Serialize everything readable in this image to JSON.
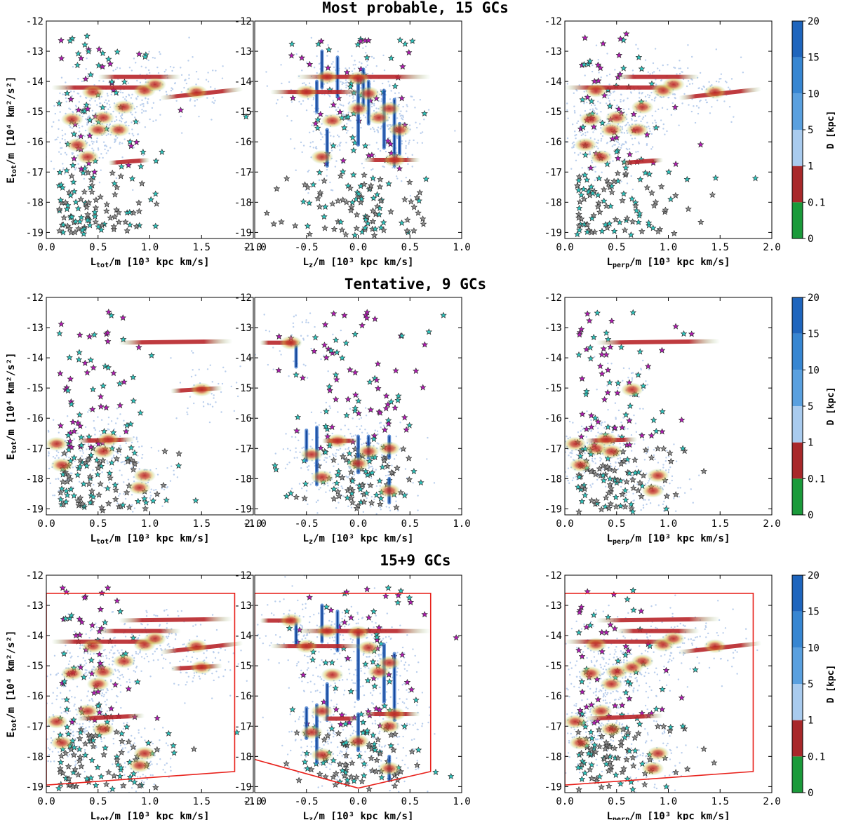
{
  "figure": {
    "rows": [
      {
        "title": "Most probable, 15 GCs"
      },
      {
        "title": "Tentative, 9 GCs"
      },
      {
        "title": "15+9 GCs"
      }
    ],
    "colorbar": {
      "label": "D [kpc]",
      "ticks": [
        "0",
        "0.1",
        "1",
        "5",
        "10",
        "15",
        "20"
      ],
      "colors": [
        "#1a9a3a",
        "#a8282a",
        "#a9cbee",
        "#5aa0df",
        "#3786d2",
        "#1e65bd",
        "#0d3f93"
      ]
    },
    "colors": {
      "polygon": "#e8211b",
      "star_magenta": "#b21bb3",
      "star_cyan": "#2fc4bd",
      "star_gray": "#8e8e8e",
      "orbit_blue": "#3a74c9",
      "blob_red": "#b8252a",
      "blob_green": "#8fc97a"
    }
  },
  "chart_data": [
    {
      "type": "scatter",
      "panel": "row1-col1",
      "title": "Most probable, 15 GCs",
      "xlabel_main": "L",
      "xlabel_sub": "tot",
      "xlabel_rest": "/m [10³ kpc km/s]",
      "ylabel_main": "E",
      "ylabel_sub": "tot",
      "ylabel_rest": "/m [10⁴ km²/s²]",
      "xlim": [
        0,
        2
      ],
      "ylim": [
        -19.2,
        -12
      ],
      "xticks": [
        "0.0",
        "0.5",
        "1.0",
        "1.5",
        "2.0"
      ],
      "yticks": [
        "-12",
        "-13",
        "-14",
        "-15",
        "-16",
        "-17",
        "-18",
        "-19"
      ],
      "gc_centers": [
        [
          0.45,
          -14.35
        ],
        [
          0.25,
          -15.25
        ],
        [
          0.5,
          -15.6
        ],
        [
          0.75,
          -14.85
        ],
        [
          0.4,
          -16.5
        ],
        [
          0.55,
          -15.2
        ],
        [
          0.95,
          -14.3
        ],
        [
          1.05,
          -14.1
        ],
        [
          1.45,
          -14.35
        ],
        [
          0.7,
          -15.6
        ],
        [
          0.3,
          -16.1
        ]
      ],
      "streaks": [
        [
          0.05,
          -14.2,
          1.15,
          -14.2
        ],
        [
          0.5,
          -13.85,
          1.3,
          -13.85
        ],
        [
          1.1,
          -14.55,
          1.9,
          -14.25
        ],
        [
          0.6,
          -16.7,
          1.0,
          -16.6
        ]
      ]
    },
    {
      "type": "scatter",
      "panel": "row1-col2",
      "xlabel_main": "L",
      "xlabel_sub": "z",
      "xlabel_rest": "/m [10³ kpc km/s]",
      "xlim": [
        -1,
        1
      ],
      "ylim": [
        -19.2,
        -12
      ],
      "xticks": [
        "-1.0",
        "-0.5",
        "0.0",
        "0.5",
        "1.0"
      ],
      "yticks": [
        "-12",
        "-13",
        "-14",
        "-15",
        "-16",
        "-17",
        "-18",
        "-19"
      ],
      "gc_centers": [
        [
          -0.3,
          -13.85
        ],
        [
          0.0,
          -13.9
        ],
        [
          0.1,
          -14.4
        ],
        [
          -0.5,
          -14.35
        ],
        [
          -0.25,
          -15.3
        ],
        [
          0.2,
          -15.2
        ],
        [
          0.3,
          -14.9
        ],
        [
          -0.35,
          -16.5
        ],
        [
          0.35,
          -16.6
        ],
        [
          0.0,
          -14.9
        ],
        [
          0.4,
          -15.6
        ]
      ],
      "streaks": [
        [
          -0.85,
          -14.35,
          0.05,
          -14.35
        ],
        [
          -0.6,
          -13.85,
          0.7,
          -13.85
        ],
        [
          0.05,
          -16.6,
          0.6,
          -16.6
        ]
      ],
      "vertical_orbits": [
        [
          -0.35,
          -13.0,
          -0.35,
          -14.2
        ],
        [
          -0.2,
          -13.2,
          -0.2,
          -14.5
        ],
        [
          -0.4,
          -14.0,
          -0.4,
          -15.0
        ],
        [
          0.0,
          -13.8,
          0.0,
          -16.1
        ],
        [
          0.1,
          -14.0,
          0.1,
          -15.4
        ],
        [
          0.25,
          -14.3,
          0.25,
          -16.2
        ],
        [
          0.35,
          -14.6,
          0.35,
          -16.8
        ],
        [
          0.05,
          -13.6,
          0.05,
          -14.8
        ],
        [
          -0.3,
          -15.6,
          -0.3,
          -16.8
        ],
        [
          0.4,
          -15.4,
          0.4,
          -16.4
        ]
      ]
    },
    {
      "type": "scatter",
      "panel": "row1-col3",
      "xlabel_main": "L",
      "xlabel_sub": "perp",
      "xlabel_rest": "/m [10³ kpc km/s]",
      "xlim": [
        0,
        2
      ],
      "ylim": [
        -19.2,
        -12
      ],
      "xticks": [
        "0.0",
        "0.5",
        "1.0",
        "1.5",
        "2.0"
      ],
      "yticks": [
        "-12",
        "-13",
        "-14",
        "-15",
        "-16",
        "-17",
        "-18",
        "-19"
      ],
      "gc_centers": [
        [
          0.3,
          -14.3
        ],
        [
          0.25,
          -15.25
        ],
        [
          0.45,
          -15.6
        ],
        [
          0.75,
          -14.85
        ],
        [
          0.35,
          -16.5
        ],
        [
          0.5,
          -15.2
        ],
        [
          0.95,
          -14.3
        ],
        [
          1.05,
          -14.1
        ],
        [
          1.45,
          -14.35
        ],
        [
          0.7,
          -15.6
        ],
        [
          0.2,
          -16.1
        ]
      ],
      "streaks": [
        [
          0.0,
          -14.2,
          1.1,
          -14.2
        ],
        [
          0.5,
          -13.85,
          1.3,
          -13.85
        ],
        [
          1.1,
          -14.55,
          1.9,
          -14.25
        ],
        [
          0.55,
          -16.7,
          0.95,
          -16.6
        ]
      ]
    },
    {
      "type": "scatter",
      "panel": "row2-col1",
      "title": "Tentative, 9 GCs",
      "xlabel_main": "L",
      "xlabel_sub": "tot",
      "xlabel_rest": "/m [10³ kpc km/s]",
      "ylabel_main": "E",
      "ylabel_sub": "tot",
      "ylabel_rest": "/m [10⁴ km²/s²]",
      "xlim": [
        0,
        2
      ],
      "ylim": [
        -19.2,
        -12
      ],
      "xticks": [
        "0.0",
        "0.5",
        "1.0",
        "1.5",
        "2.0"
      ],
      "yticks": [
        "-12",
        "-13",
        "-14",
        "-15",
        "-16",
        "-17",
        "-18",
        "-19"
      ],
      "gc_centers": [
        [
          0.1,
          -16.85
        ],
        [
          0.15,
          -17.55
        ],
        [
          0.55,
          -17.1
        ],
        [
          0.9,
          -18.3
        ],
        [
          1.5,
          -15.05
        ],
        [
          0.6,
          -16.7
        ],
        [
          0.95,
          -17.9
        ]
      ],
      "streaks": [
        [
          0.7,
          -13.5,
          1.8,
          -13.45
        ],
        [
          0.3,
          -16.75,
          0.85,
          -16.7
        ],
        [
          1.2,
          -15.1,
          1.7,
          -15.0
        ]
      ]
    },
    {
      "type": "scatter",
      "panel": "row2-col2",
      "xlabel_main": "L",
      "xlabel_sub": "z",
      "xlabel_rest": "/m [10³ kpc km/s]",
      "xlim": [
        -1,
        1
      ],
      "ylim": [
        -19.2,
        -12
      ],
      "xticks": [
        "-1.0",
        "-0.5",
        "0.0",
        "0.5",
        "1.0"
      ],
      "yticks": [
        "-12",
        "-13",
        "-14",
        "-15",
        "-16",
        "-17",
        "-18",
        "-19"
      ],
      "gc_centers": [
        [
          -0.45,
          -17.2
        ],
        [
          -0.35,
          -17.95
        ],
        [
          -0.2,
          -16.75
        ],
        [
          0.0,
          -17.5
        ],
        [
          0.1,
          -17.1
        ],
        [
          0.3,
          -18.4
        ],
        [
          0.3,
          -17.0
        ],
        [
          -0.65,
          -13.5
        ]
      ],
      "streaks": [
        [
          -0.95,
          -13.5,
          -0.55,
          -13.5
        ],
        [
          -0.35,
          -16.75,
          0.0,
          -16.75
        ]
      ],
      "vertical_orbits": [
        [
          -0.6,
          -13.6,
          -0.6,
          -14.3
        ],
        [
          -0.5,
          -16.4,
          -0.5,
          -17.4
        ],
        [
          -0.4,
          -16.3,
          -0.4,
          -18.2
        ],
        [
          0.0,
          -16.6,
          0.0,
          -17.8
        ],
        [
          0.1,
          -16.6,
          0.1,
          -17.3
        ],
        [
          0.3,
          -16.6,
          0.3,
          -17.3
        ],
        [
          0.3,
          -18.0,
          0.3,
          -18.8
        ]
      ]
    },
    {
      "type": "scatter",
      "panel": "row2-col3",
      "xlabel_main": "L",
      "xlabel_sub": "perp",
      "xlabel_rest": "/m [10³ kpc km/s]",
      "xlim": [
        0,
        2
      ],
      "ylim": [
        -19.2,
        -12
      ],
      "xticks": [
        "0.0",
        "0.5",
        "1.0",
        "1.5",
        "2.0"
      ],
      "yticks": [
        "-12",
        "-13",
        "-14",
        "-15",
        "-16",
        "-17",
        "-18",
        "-19"
      ],
      "gc_centers": [
        [
          0.1,
          -16.85
        ],
        [
          0.15,
          -17.55
        ],
        [
          0.45,
          -17.1
        ],
        [
          0.85,
          -18.4
        ],
        [
          0.65,
          -15.05
        ],
        [
          0.4,
          -16.7
        ],
        [
          0.9,
          -17.9
        ],
        [
          0.3,
          -17.0
        ]
      ],
      "streaks": [
        [
          0.3,
          -13.5,
          1.5,
          -13.45
        ],
        [
          0.2,
          -16.75,
          0.7,
          -16.7
        ]
      ]
    },
    {
      "type": "scatter",
      "panel": "row3-col1",
      "title": "15+9 GCs",
      "xlabel_main": "L",
      "xlabel_sub": "tot",
      "xlabel_rest": "/m [10³ kpc km/s]",
      "ylabel_main": "E",
      "ylabel_sub": "tot",
      "ylabel_rest": "/m [10⁴ km²/s²]",
      "xlim": [
        0,
        2
      ],
      "ylim": [
        -19.2,
        -12
      ],
      "xticks": [
        "0.0",
        "0.5",
        "1.0",
        "1.5",
        "2.0"
      ],
      "yticks": [
        "-12",
        "-13",
        "-14",
        "-15",
        "-16",
        "-17",
        "-18",
        "-19"
      ],
      "gc_centers": [
        [
          0.45,
          -14.35
        ],
        [
          0.25,
          -15.25
        ],
        [
          0.5,
          -15.6
        ],
        [
          0.75,
          -14.85
        ],
        [
          0.4,
          -16.5
        ],
        [
          0.55,
          -15.2
        ],
        [
          0.95,
          -14.3
        ],
        [
          1.05,
          -14.1
        ],
        [
          1.45,
          -14.35
        ],
        [
          0.1,
          -16.85
        ],
        [
          0.15,
          -17.55
        ],
        [
          0.55,
          -17.1
        ],
        [
          0.9,
          -18.3
        ],
        [
          1.5,
          -15.05
        ],
        [
          0.95,
          -17.9
        ]
      ],
      "streaks": [
        [
          0.05,
          -14.2,
          1.15,
          -14.2
        ],
        [
          0.5,
          -13.85,
          1.3,
          -13.85
        ],
        [
          1.1,
          -14.55,
          1.9,
          -14.25
        ],
        [
          0.7,
          -13.5,
          1.8,
          -13.45
        ],
        [
          0.3,
          -16.75,
          0.95,
          -16.65
        ],
        [
          1.2,
          -15.1,
          1.7,
          -15.0
        ]
      ],
      "polygon": [
        [
          0.0,
          -12.6
        ],
        [
          1.82,
          -12.6
        ],
        [
          1.82,
          -18.5
        ],
        [
          0.0,
          -18.95
        ]
      ]
    },
    {
      "type": "scatter",
      "panel": "row3-col2",
      "xlabel_main": "L",
      "xlabel_sub": "z",
      "xlabel_rest": "/m [10³ kpc km/s]",
      "xlim": [
        -1,
        1
      ],
      "ylim": [
        -19.2,
        -12
      ],
      "xticks": [
        "-1.0",
        "-0.5",
        "0.0",
        "0.5",
        "1.0"
      ],
      "yticks": [
        "-12",
        "-13",
        "-14",
        "-15",
        "-16",
        "-17",
        "-18",
        "-19"
      ],
      "gc_centers": [
        [
          -0.3,
          -13.85
        ],
        [
          0.0,
          -13.9
        ],
        [
          0.1,
          -14.4
        ],
        [
          -0.5,
          -14.35
        ],
        [
          -0.25,
          -15.3
        ],
        [
          0.2,
          -15.2
        ],
        [
          0.3,
          -14.9
        ],
        [
          -0.35,
          -16.5
        ],
        [
          0.35,
          -16.6
        ],
        [
          -0.45,
          -17.2
        ],
        [
          -0.35,
          -17.95
        ],
        [
          0.0,
          -17.5
        ],
        [
          0.3,
          -18.4
        ],
        [
          0.3,
          -17.0
        ],
        [
          -0.65,
          -13.5
        ]
      ],
      "streaks": [
        [
          -0.85,
          -14.35,
          0.05,
          -14.35
        ],
        [
          -0.6,
          -13.85,
          0.7,
          -13.85
        ],
        [
          0.05,
          -16.6,
          0.6,
          -16.6
        ],
        [
          -0.95,
          -13.5,
          -0.55,
          -13.5
        ],
        [
          -0.35,
          -16.75,
          0.0,
          -16.75
        ]
      ],
      "vertical_orbits": [
        [
          -0.35,
          -13.0,
          -0.35,
          -14.2
        ],
        [
          -0.2,
          -13.2,
          -0.2,
          -14.5
        ],
        [
          0.0,
          -13.8,
          0.0,
          -16.1
        ],
        [
          0.25,
          -14.3,
          0.25,
          -16.2
        ],
        [
          0.35,
          -14.6,
          0.35,
          -16.8
        ],
        [
          -0.3,
          -15.6,
          -0.3,
          -16.8
        ],
        [
          -0.5,
          -16.4,
          -0.5,
          -17.4
        ],
        [
          -0.4,
          -16.3,
          -0.4,
          -18.2
        ],
        [
          0.0,
          -16.6,
          0.0,
          -17.8
        ],
        [
          0.3,
          -18.0,
          0.3,
          -18.8
        ],
        [
          -0.6,
          -13.6,
          -0.6,
          -14.3
        ]
      ],
      "polygon": [
        [
          -1.0,
          -12.6
        ],
        [
          0.7,
          -12.6
        ],
        [
          0.7,
          -18.5
        ],
        [
          0.0,
          -19.05
        ],
        [
          -1.0,
          -18.1
        ]
      ]
    },
    {
      "type": "scatter",
      "panel": "row3-col3",
      "xlabel_main": "L",
      "xlabel_sub": "perp",
      "xlabel_rest": "/m [10³ kpc km/s]",
      "xlim": [
        0,
        2
      ],
      "ylim": [
        -19.2,
        -12
      ],
      "xticks": [
        "0.0",
        "0.5",
        "1.0",
        "1.5",
        "2.0"
      ],
      "yticks": [
        "-12",
        "-13",
        "-14",
        "-15",
        "-16",
        "-17",
        "-18",
        "-19"
      ],
      "gc_centers": [
        [
          0.3,
          -14.3
        ],
        [
          0.25,
          -15.25
        ],
        [
          0.45,
          -15.6
        ],
        [
          0.75,
          -14.85
        ],
        [
          0.35,
          -16.5
        ],
        [
          0.5,
          -15.2
        ],
        [
          0.95,
          -14.3
        ],
        [
          1.05,
          -14.1
        ],
        [
          1.45,
          -14.35
        ],
        [
          0.1,
          -16.85
        ],
        [
          0.15,
          -17.55
        ],
        [
          0.45,
          -17.1
        ],
        [
          0.85,
          -18.4
        ],
        [
          0.65,
          -15.05
        ],
        [
          0.9,
          -17.9
        ]
      ],
      "streaks": [
        [
          0.0,
          -14.2,
          1.1,
          -14.2
        ],
        [
          0.5,
          -13.85,
          1.3,
          -13.85
        ],
        [
          1.1,
          -14.55,
          1.9,
          -14.25
        ],
        [
          0.3,
          -13.5,
          1.5,
          -13.45
        ],
        [
          0.2,
          -16.75,
          0.95,
          -16.65
        ]
      ],
      "polygon": [
        [
          0.0,
          -12.6
        ],
        [
          1.82,
          -12.6
        ],
        [
          1.82,
          -18.5
        ],
        [
          0.0,
          -18.95
        ]
      ]
    }
  ]
}
